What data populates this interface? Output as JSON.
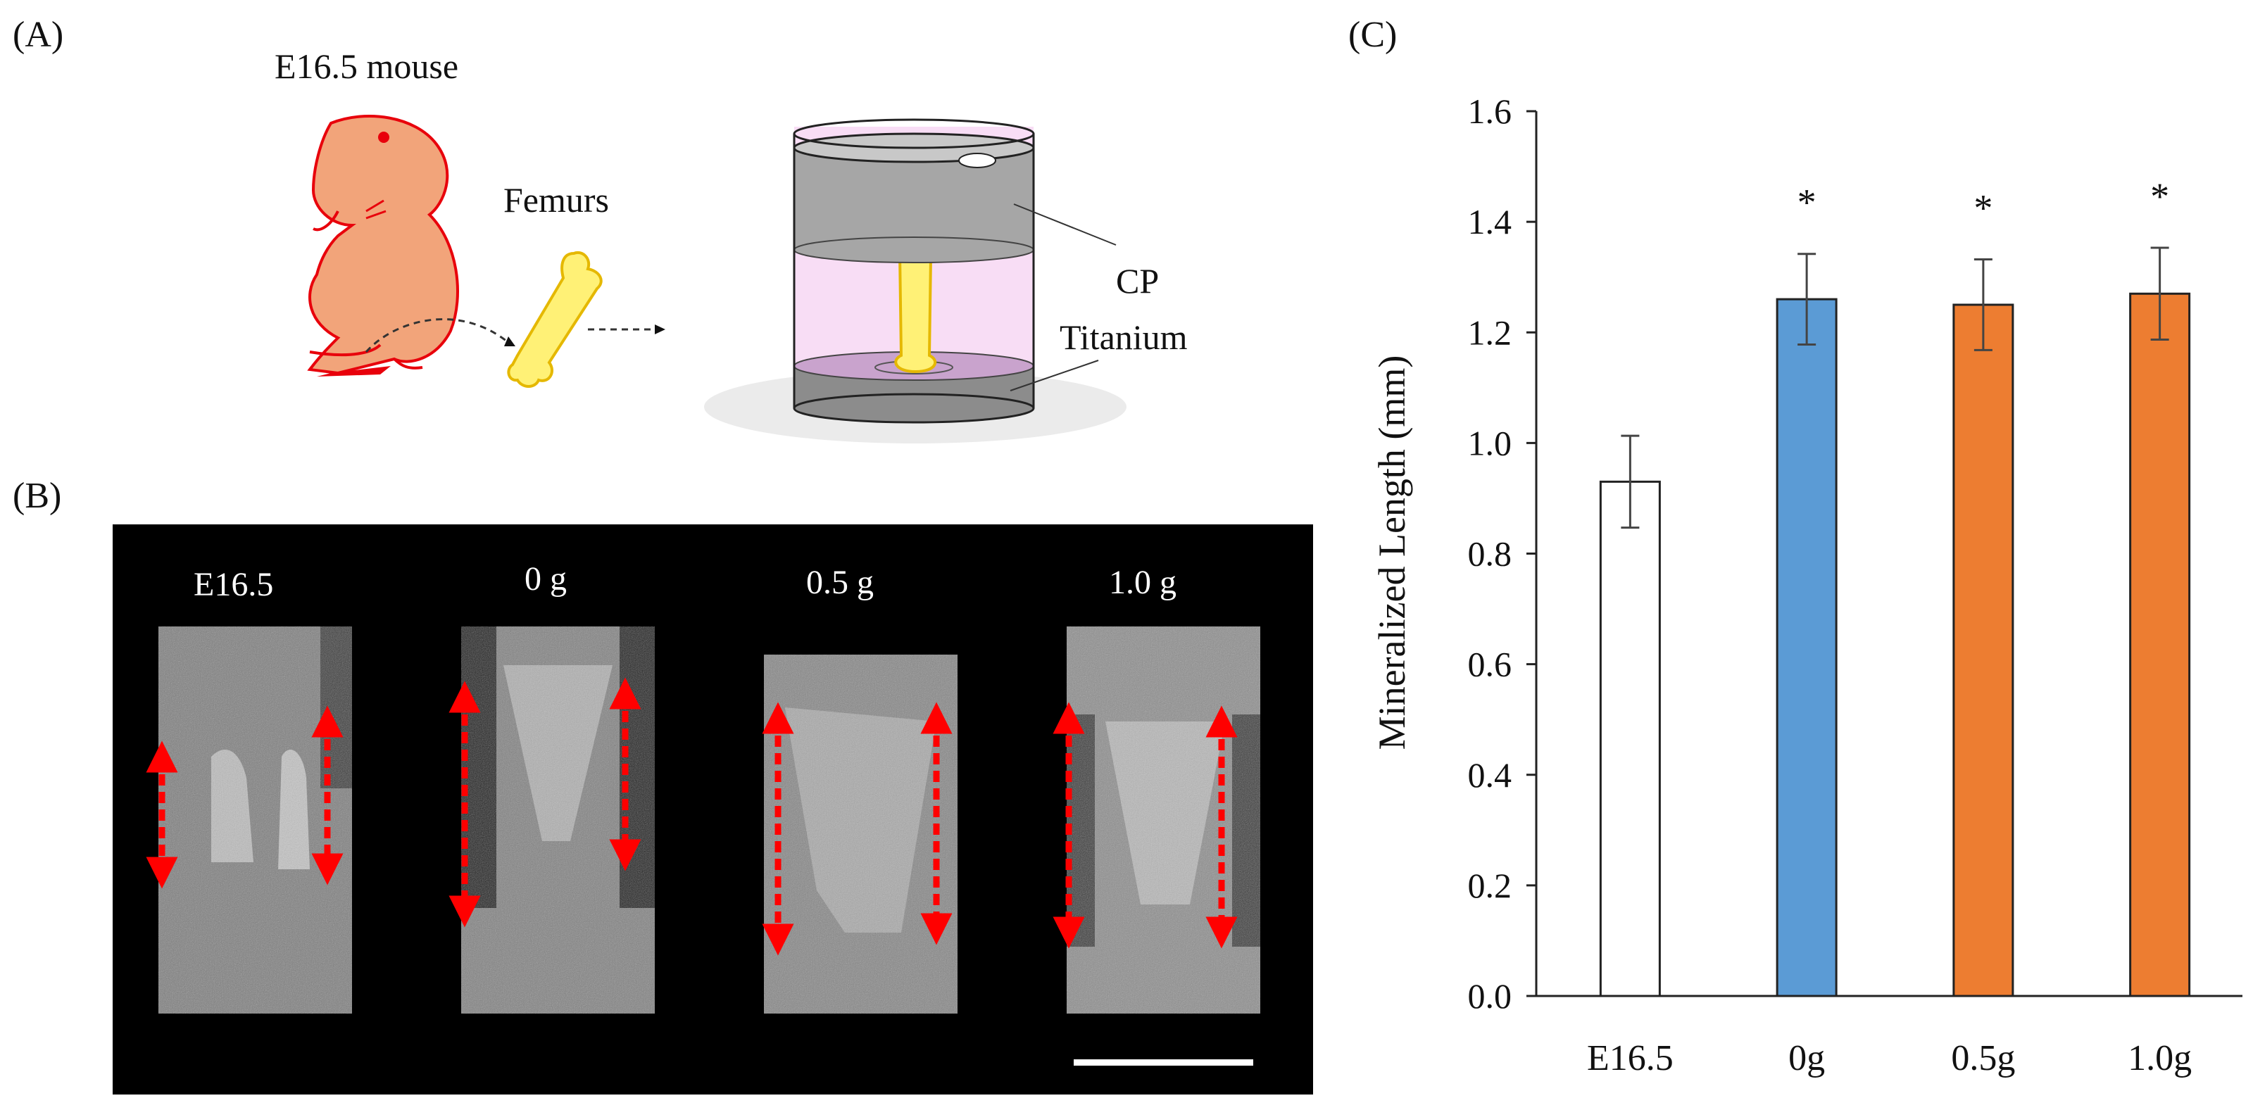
{
  "panels": {
    "a": {
      "label": "(A)",
      "mouse_label": "E16.5 mouse",
      "femurs_label": "Femurs",
      "cp_label": "CP",
      "titanium_label": "Titanium"
    },
    "b": {
      "label": "(B)",
      "groups": [
        "E16.5",
        "0 g",
        "0.5 g",
        "1.0 g"
      ]
    },
    "c": {
      "label": "(C)"
    }
  },
  "colors": {
    "bar_e165": "#ffffff",
    "bar_0g": "#5b9bd5",
    "bar_05g": "#ed7d31",
    "bar_10g": "#ed7d31",
    "arrow": "#ff0000",
    "mouse": "#f2a47a"
  },
  "chart_data": {
    "type": "bar",
    "ylabel": "Mineralized Length (mm)",
    "xlabel": "",
    "ylim": [
      0,
      1.6
    ],
    "yticks": [
      "0.0",
      "0.2",
      "0.4",
      "0.6",
      "0.8",
      "1.0",
      "1.2",
      "1.4",
      "1.6"
    ],
    "categories": [
      "E16.5",
      "0g",
      "0.5g",
      "1.0g"
    ],
    "values": [
      0.93,
      1.26,
      1.25,
      1.27
    ],
    "errors": [
      0.083,
      0.082,
      0.082,
      0.083
    ],
    "annotations": [
      "",
      "*",
      "*",
      "*"
    ],
    "bar_colors": [
      "#ffffff",
      "#5b9bd5",
      "#ed7d31",
      "#ed7d31"
    ]
  }
}
